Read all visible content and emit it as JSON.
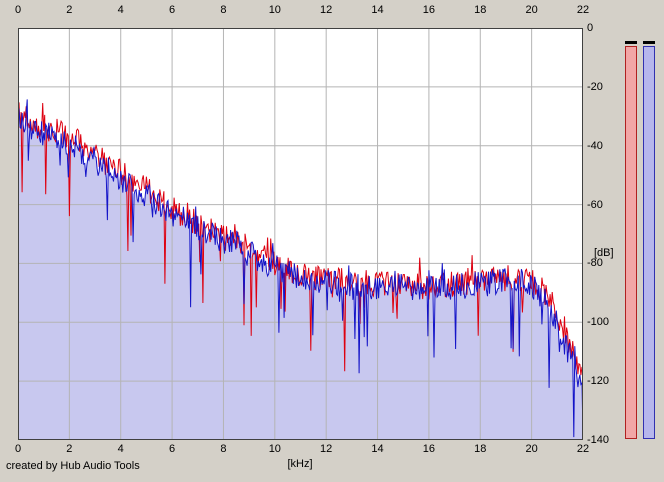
{
  "footer": {
    "credit": "created by Hub Audio Tools"
  },
  "chart_data": {
    "type": "line",
    "title": "",
    "xlabel": "[kHz]",
    "ylabel": "[dB]",
    "xlim": [
      0,
      22
    ],
    "ylim": [
      -140,
      0
    ],
    "grid": true,
    "x_ticks": [
      0,
      2,
      4,
      6,
      8,
      10,
      12,
      14,
      16,
      18,
      20,
      22
    ],
    "y_ticks": [
      0,
      -20,
      -40,
      -60,
      -80,
      -100,
      -120,
      -140
    ],
    "x": [
      0,
      0.3,
      0.7,
      1,
      1.5,
      2,
      2.5,
      3,
      3.5,
      4,
      4.5,
      5,
      5.5,
      6,
      6.5,
      7,
      7.5,
      8,
      8.5,
      9,
      9.5,
      10,
      10.5,
      11,
      12,
      13,
      14,
      15,
      16,
      17,
      18,
      19,
      20,
      20.5,
      21,
      21.3,
      21.6,
      22
    ],
    "series": [
      {
        "name": "spectrum-red",
        "color": "#dd0010",
        "fill": null,
        "db": [
          -29,
          -31,
          -33,
          -34,
          -35,
          -37,
          -40,
          -43,
          -46,
          -49,
          -52,
          -55,
          -58,
          -61,
          -64,
          -66,
          -69,
          -71,
          -73,
          -75,
          -78,
          -80,
          -82,
          -84,
          -85,
          -86,
          -87,
          -87,
          -88,
          -87,
          -86,
          -85,
          -86,
          -90,
          -97,
          -103,
          -110,
          -118
        ]
      },
      {
        "name": "spectrum-blue",
        "color": "#1414c8",
        "fill": "#c8c8ef",
        "db": [
          -31,
          -33,
          -35,
          -36,
          -37,
          -39,
          -42,
          -45,
          -48,
          -51,
          -54,
          -57,
          -60,
          -63,
          -65,
          -68,
          -70,
          -72,
          -74,
          -77,
          -79,
          -81,
          -83,
          -85,
          -86,
          -87,
          -88,
          -88,
          -89,
          -88,
          -87,
          -86,
          -87,
          -92,
          -100,
          -107,
          -114,
          -122
        ]
      }
    ],
    "noise": {
      "seed": 12,
      "jitter_db": 4.5,
      "spike_prob": 0.05,
      "spike_db": 30,
      "up_prob": 0.05,
      "up_db": 7
    },
    "grid_color": "#b4b4b4",
    "frame_color": "#404040"
  },
  "meters": [
    {
      "name": "level-meter-red",
      "peak_color": "#000000",
      "border": "#b02020",
      "fill": "#f2a6a6"
    },
    {
      "name": "level-meter-blue",
      "peak_color": "#000000",
      "border": "#3030b0",
      "fill": "#b6b6ec"
    }
  ]
}
